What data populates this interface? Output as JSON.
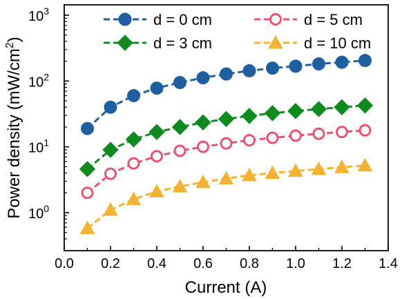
{
  "chart_data": {
    "type": "line",
    "title": "",
    "xlabel": "Current (A)",
    "ylabel": "Power density (mW/cm",
    "ylabel_superscript": "2",
    "ylabel_close": ")",
    "xlim": [
      0.0,
      1.4
    ],
    "ylim": [
      0.3,
      1200
    ],
    "yscale": "log",
    "x_ticks": [
      "0.0",
      "0.2",
      "0.4",
      "0.6",
      "0.8",
      "1.0",
      "1.2",
      "1.4"
    ],
    "y_ticks": [
      {
        "base": "10",
        "exp": "0",
        "value": 1
      },
      {
        "base": "10",
        "exp": "1",
        "value": 10
      },
      {
        "base": "10",
        "exp": "2",
        "value": 100
      },
      {
        "base": "10",
        "exp": "3",
        "value": 1000
      }
    ],
    "grid": false,
    "legend_position": "top",
    "x": [
      0.1,
      0.2,
      0.3,
      0.4,
      0.5,
      0.6,
      0.7,
      0.8,
      0.9,
      1.0,
      1.1,
      1.2,
      1.3
    ],
    "series": [
      {
        "name": "d = 0 cm",
        "color": "#1f5fa0",
        "marker": "circle-filled",
        "values": [
          19,
          40,
          60,
          78,
          95,
          112,
          128,
          143,
          157,
          168,
          182,
          193,
          205
        ]
      },
      {
        "name": "d = 5 cm",
        "color": "#e8536f",
        "marker": "circle-open",
        "values": [
          2.0,
          3.9,
          5.6,
          7.2,
          8.7,
          10.0,
          11.3,
          12.6,
          13.7,
          14.8,
          15.8,
          16.8,
          17.8
        ]
      },
      {
        "name": "d = 3 cm",
        "color": "#0f8a1f",
        "marker": "diamond",
        "values": [
          4.6,
          9.0,
          13.0,
          16.8,
          20.0,
          23.5,
          26.5,
          29.5,
          32.5,
          35.0,
          37.5,
          40.0,
          42.5
        ]
      },
      {
        "name": "d = 10 cm",
        "color": "#f2b233",
        "marker": "triangle",
        "values": [
          0.58,
          1.1,
          1.6,
          2.1,
          2.5,
          2.9,
          3.3,
          3.7,
          4.0,
          4.3,
          4.6,
          4.9,
          5.2
        ]
      }
    ]
  }
}
